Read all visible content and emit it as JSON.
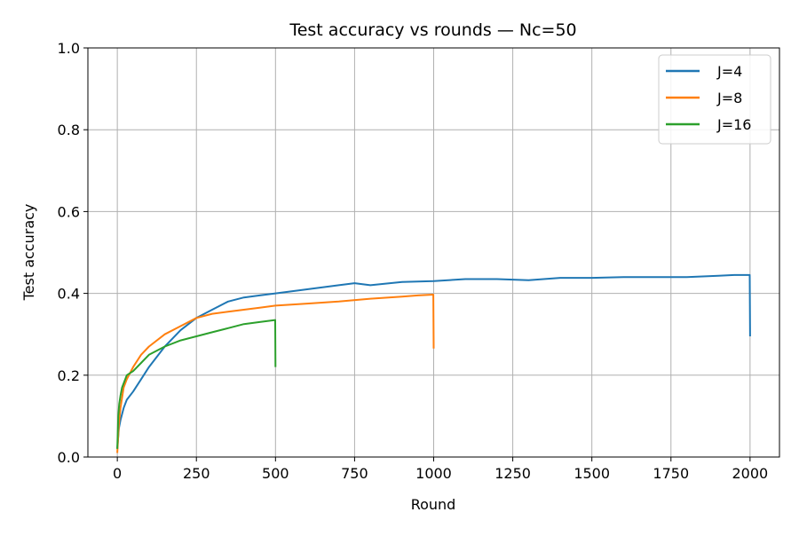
{
  "chart_data": {
    "type": "line",
    "title": "Test accuracy vs rounds — Nc=50",
    "xlabel": "Round",
    "ylabel": "Test accuracy",
    "xlim": [
      -93,
      2093
    ],
    "ylim": [
      0.0,
      1.0
    ],
    "xticks": [
      0,
      250,
      500,
      750,
      1000,
      1250,
      1500,
      1750,
      2000
    ],
    "yticks": [
      0.0,
      0.2,
      0.4,
      0.6,
      0.8,
      1.0
    ],
    "xtick_labels": [
      "0",
      "250",
      "500",
      "750",
      "1000",
      "1250",
      "1500",
      "1750",
      "2000"
    ],
    "ytick_labels": [
      "0.0",
      "0.2",
      "0.4",
      "0.6",
      "0.8",
      "1.0"
    ],
    "grid": true,
    "legend_position": "top-right",
    "series": [
      {
        "name": "J=4",
        "color": "#1f77b4",
        "x": [
          0,
          5,
          10,
          20,
          30,
          50,
          75,
          100,
          150,
          200,
          250,
          300,
          350,
          400,
          450,
          500,
          600,
          700,
          750,
          800,
          900,
          1000,
          1100,
          1200,
          1300,
          1400,
          1500,
          1600,
          1700,
          1800,
          1900,
          1950,
          1999,
          2000
        ],
        "y": [
          0.02,
          0.07,
          0.09,
          0.12,
          0.14,
          0.16,
          0.19,
          0.22,
          0.27,
          0.31,
          0.34,
          0.36,
          0.38,
          0.39,
          0.395,
          0.4,
          0.41,
          0.42,
          0.425,
          0.42,
          0.428,
          0.43,
          0.435,
          0.435,
          0.432,
          0.438,
          0.438,
          0.44,
          0.44,
          0.44,
          0.443,
          0.445,
          0.445,
          0.295
        ]
      },
      {
        "name": "J=8",
        "color": "#ff7f0e",
        "x": [
          0,
          5,
          10,
          20,
          30,
          50,
          75,
          100,
          150,
          200,
          250,
          300,
          350,
          400,
          450,
          500,
          600,
          700,
          800,
          900,
          950,
          999,
          1000
        ],
        "y": [
          0.01,
          0.08,
          0.12,
          0.17,
          0.19,
          0.22,
          0.25,
          0.27,
          0.3,
          0.32,
          0.34,
          0.35,
          0.355,
          0.36,
          0.365,
          0.37,
          0.375,
          0.38,
          0.387,
          0.392,
          0.395,
          0.397,
          0.265
        ]
      },
      {
        "name": "J=16",
        "color": "#2ca02c",
        "x": [
          0,
          3,
          6,
          10,
          15,
          20,
          30,
          50,
          75,
          100,
          150,
          200,
          250,
          300,
          350,
          400,
          450,
          499,
          500
        ],
        "y": [
          0.02,
          0.1,
          0.13,
          0.15,
          0.17,
          0.18,
          0.2,
          0.21,
          0.23,
          0.25,
          0.27,
          0.285,
          0.295,
          0.305,
          0.315,
          0.325,
          0.33,
          0.335,
          0.22
        ]
      }
    ]
  }
}
